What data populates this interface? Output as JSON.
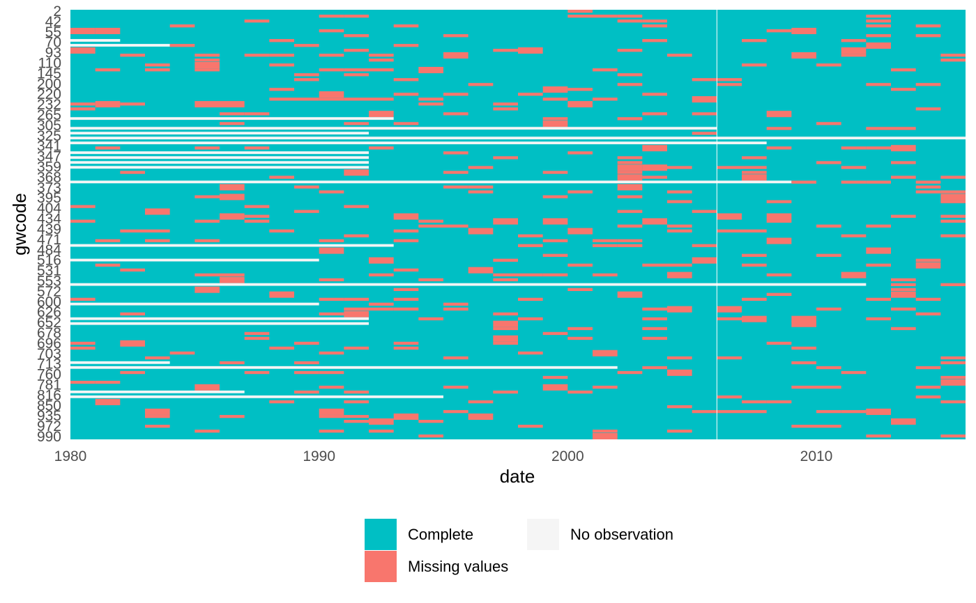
{
  "chart_data": {
    "type": "heatmap",
    "title": "",
    "xlabel": "date",
    "ylabel": "gwcode",
    "x_ticks": [
      "1980",
      "1990",
      "2000",
      "2010"
    ],
    "xlim": [
      1980,
      2016
    ],
    "y_tick_labels": [
      "2",
      "42",
      "55",
      "70",
      "93",
      "110",
      "145",
      "200",
      "220",
      "232",
      "265",
      "305",
      "325",
      "341",
      "347",
      "359",
      "368",
      "373",
      "395",
      "404",
      "434",
      "439",
      "471",
      "484",
      "516",
      "531",
      "553",
      "572",
      "600",
      "626",
      "652",
      "678",
      "696",
      "703",
      "713",
      "760",
      "781",
      "816",
      "850",
      "935",
      "972",
      "990"
    ],
    "row_count": 88,
    "legend_position": "bottom",
    "grid": false,
    "categories": [
      {
        "name": "Complete",
        "color": "#00BFC4"
      },
      {
        "name": "Missing values",
        "color": "#F8766D"
      },
      {
        "name": "No observation",
        "color": "#F5F5F5"
      }
    ],
    "no_observation_spans": [
      {
        "row": 6,
        "from": 1980,
        "to": 1982
      },
      {
        "row": 7,
        "from": 1980,
        "to": 1984
      },
      {
        "row": 22,
        "from": 1980,
        "to": 1993
      },
      {
        "row": 24,
        "from": 1980,
        "to": 2006
      },
      {
        "row": 25,
        "from": 1980,
        "to": 1992
      },
      {
        "row": 26,
        "from": 1980,
        "to": 2016
      },
      {
        "row": 27,
        "from": 1980,
        "to": 2008
      },
      {
        "row": 29,
        "from": 1980,
        "to": 1992
      },
      {
        "row": 30,
        "from": 1980,
        "to": 1992
      },
      {
        "row": 31,
        "from": 1980,
        "to": 1992
      },
      {
        "row": 32,
        "from": 1980,
        "to": 1992
      },
      {
        "row": 35,
        "from": 1980,
        "to": 2009
      },
      {
        "row": 48,
        "from": 1980,
        "to": 1993
      },
      {
        "row": 51,
        "from": 1980,
        "to": 1990
      },
      {
        "row": 56,
        "from": 1980,
        "to": 2012
      },
      {
        "row": 60,
        "from": 1980,
        "to": 1990
      },
      {
        "row": 63,
        "from": 1980,
        "to": 1992
      },
      {
        "row": 64,
        "from": 1980,
        "to": 1992
      },
      {
        "row": 72,
        "from": 1980,
        "to": 1984
      },
      {
        "row": 73,
        "from": 1980,
        "to": 2002
      },
      {
        "row": 78,
        "from": 1980,
        "to": 1987
      },
      {
        "row": 79,
        "from": 1980,
        "to": 1995
      }
    ],
    "missing_density": 0.14
  },
  "legend": {
    "items": [
      {
        "label": "Complete",
        "color": "#00BFC4"
      },
      {
        "label": "Missing values",
        "color": "#F8766D"
      },
      {
        "label": "No observation",
        "color": "#F5F5F5"
      }
    ]
  }
}
